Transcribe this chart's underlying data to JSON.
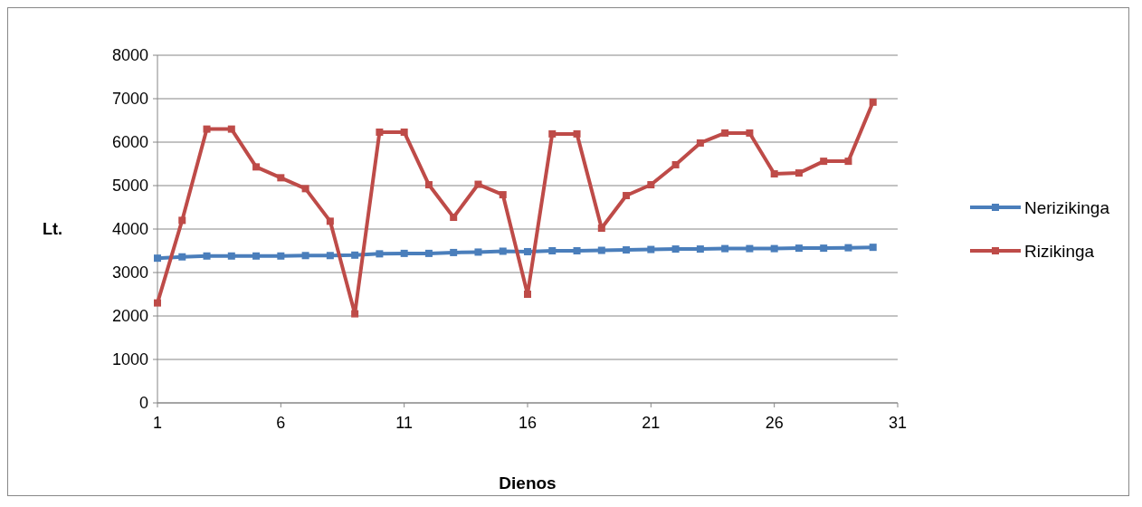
{
  "chart_data": {
    "type": "line",
    "xlabel": "Dienos",
    "ylabel": "Lt.",
    "x": [
      1,
      2,
      3,
      4,
      5,
      6,
      7,
      8,
      9,
      10,
      11,
      12,
      13,
      14,
      15,
      16,
      17,
      18,
      19,
      20,
      21,
      22,
      23,
      24,
      25,
      26,
      27,
      28,
      29,
      30
    ],
    "series": [
      {
        "name": "Nerizikinga",
        "color": "#4a7ebb",
        "values": [
          3330,
          3360,
          3380,
          3380,
          3380,
          3380,
          3390,
          3390,
          3400,
          3430,
          3440,
          3440,
          3460,
          3470,
          3490,
          3480,
          3500,
          3500,
          3510,
          3520,
          3530,
          3540,
          3540,
          3550,
          3550,
          3550,
          3560,
          3560,
          3570,
          3580
        ]
      },
      {
        "name": "Rizikinga",
        "color": "#be4b48",
        "values": [
          2300,
          4200,
          6300,
          6300,
          5430,
          5180,
          4930,
          4180,
          2050,
          6230,
          6230,
          5020,
          4270,
          5030,
          4790,
          2500,
          6190,
          6190,
          4020,
          4770,
          5020,
          5480,
          5980,
          6210,
          6210,
          5270,
          5290,
          5560,
          5560,
          6920
        ]
      }
    ],
    "xlim": [
      1,
      31
    ],
    "xticks": [
      1,
      6,
      11,
      16,
      21,
      26,
      31
    ],
    "ylim": [
      0,
      8000
    ],
    "yticks": [
      0,
      1000,
      2000,
      3000,
      4000,
      5000,
      6000,
      7000,
      8000
    ],
    "grid": "y",
    "legend": "right",
    "marker": "square",
    "line_style": "solid"
  }
}
